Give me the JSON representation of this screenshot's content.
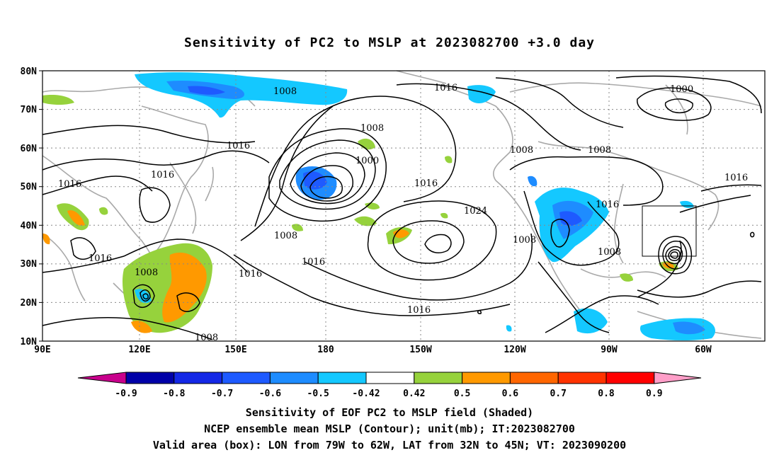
{
  "title": "Sensitivity of PC2 to MSLP at 2023082700 +3.0 day",
  "axes": {
    "lat_labels": [
      "80N",
      "70N",
      "60N",
      "50N",
      "40N",
      "30N",
      "20N",
      "10N"
    ],
    "lon_labels": [
      "90E",
      "120E",
      "150E",
      "180",
      "150W",
      "120W",
      "90W",
      "60W"
    ]
  },
  "contour_labels": [
    {
      "text": "1008"
    },
    {
      "text": "1016"
    },
    {
      "text": "1000"
    },
    {
      "text": "1008"
    },
    {
      "text": "1000"
    },
    {
      "text": "1016"
    },
    {
      "text": "1016"
    },
    {
      "text": "1016"
    },
    {
      "text": "1016"
    },
    {
      "text": "1008"
    },
    {
      "text": "1016"
    },
    {
      "text": "1008"
    },
    {
      "text": "1016"
    },
    {
      "text": "1008"
    },
    {
      "text": "1016"
    },
    {
      "text": "1024"
    },
    {
      "text": "1008"
    },
    {
      "text": "1016"
    },
    {
      "text": "1008"
    },
    {
      "text": "1016"
    },
    {
      "text": "1016"
    },
    {
      "text": "1008"
    },
    {
      "text": "1008"
    },
    {
      "text": "1016"
    },
    {
      "text": "1008"
    }
  ],
  "colorbar": {
    "labels": [
      "-0.9",
      "-0.8",
      "-0.7",
      "-0.6",
      "-0.5",
      "-0.42",
      "0.42",
      "0.5",
      "0.6",
      "0.7",
      "0.8",
      "0.9"
    ],
    "colors": [
      "#0000a8",
      "#1428e6",
      "#1e5aff",
      "#1e8cff",
      "#14c8ff",
      "#ffffff",
      "#96d23c",
      "#ff9900",
      "#ff6600",
      "#ff3300",
      "#ff0000"
    ],
    "low_end_color": "#c8008c",
    "high_end_color": "#ff9ec8"
  },
  "captions": {
    "line1": "Sensitivity of EOF PC2 to MSLP field (Shaded)",
    "line2": "NCEP ensemble mean MSLP (Contour); unit(mb); IT:2023082700",
    "line3": "Valid area (box): LON from 79W to 62W, LAT from 32N to 45N; VT: 2023090200"
  }
}
